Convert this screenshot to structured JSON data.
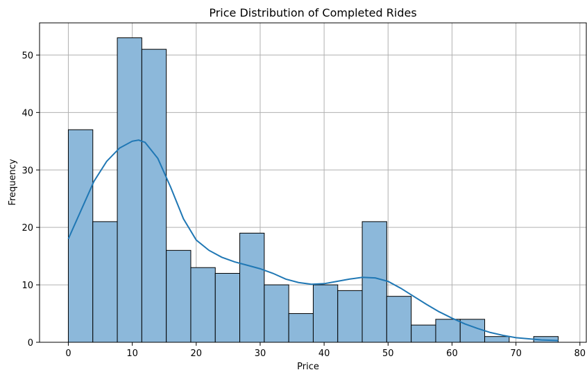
{
  "chart_data": {
    "type": "histogram",
    "title": "Price Distribution of Completed Rides",
    "xlabel": "Price",
    "ylabel": "Frequency",
    "xlim": [
      -4.5,
      81
    ],
    "ylim": [
      0,
      55.6
    ],
    "xticks": [
      0,
      10,
      20,
      30,
      40,
      50,
      60,
      70,
      80
    ],
    "yticks": [
      0,
      10,
      20,
      30,
      40,
      50
    ],
    "grid": true,
    "bin_edges": [
      0,
      3.83,
      7.66,
      11.49,
      15.32,
      19.15,
      22.98,
      26.81,
      30.64,
      34.47,
      38.3,
      42.13,
      45.96,
      49.79,
      53.62,
      57.45,
      61.28,
      65.11,
      68.94,
      72.77,
      76.6
    ],
    "counts": [
      37,
      21,
      53,
      51,
      16,
      13,
      12,
      19,
      10,
      5,
      10,
      9,
      21,
      8,
      3,
      4,
      4,
      1,
      0,
      1
    ],
    "bar_fill": "#8cb8da",
    "bar_edge": "#000000",
    "kde": {
      "color": "#1f77b4",
      "x": [
        0,
        2,
        4,
        6,
        8,
        10,
        11,
        12,
        14,
        16,
        18,
        20,
        22,
        24,
        26,
        28,
        30,
        32,
        34,
        36,
        38,
        40,
        42,
        44,
        46,
        48,
        50,
        52,
        54,
        56,
        58,
        60,
        62,
        64,
        66,
        68,
        70,
        72,
        74,
        76.6
      ],
      "y": [
        18,
        23,
        28,
        31.5,
        33.8,
        35,
        35.2,
        34.8,
        32,
        27,
        21.5,
        17.8,
        16,
        14.8,
        14,
        13.4,
        12.8,
        12,
        11,
        10.4,
        10.1,
        10.2,
        10.6,
        11,
        11.3,
        11.2,
        10.6,
        9.4,
        8,
        6.6,
        5.3,
        4.2,
        3.2,
        2.4,
        1.7,
        1.2,
        0.8,
        0.6,
        0.4,
        0.3
      ]
    }
  }
}
